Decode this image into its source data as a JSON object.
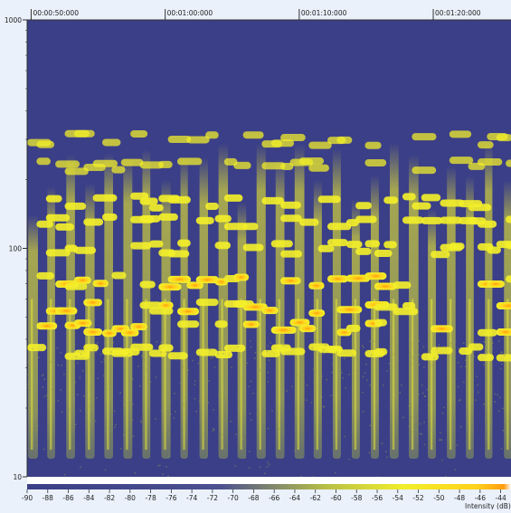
{
  "chart_data": {
    "type": "heatmap",
    "title": "",
    "xlabel": "",
    "ylabel": "",
    "x_axis": {
      "ticks": [
        "00:00:50:000",
        "00:01:00:000",
        "00:01:10:000",
        "00:01:20:000"
      ],
      "tick_seconds": [
        50,
        60,
        70,
        80
      ],
      "range_seconds": [
        49.7,
        85.8
      ]
    },
    "y_axis": {
      "scale": "log",
      "ticks": [
        "1000",
        "100",
        "10"
      ],
      "tick_values": [
        1000,
        100,
        10
      ],
      "range": [
        10,
        1000
      ]
    },
    "colorbar": {
      "label": "Intensity (dB)",
      "ticks": [
        "-90",
        "-88",
        "-86",
        "-84",
        "-82",
        "-80",
        "-78",
        "-76",
        "-74",
        "-72",
        "-70",
        "-68",
        "-66",
        "-64",
        "-62",
        "-60",
        "-58",
        "-56",
        "-54",
        "-52",
        "-50",
        "-48",
        "-46",
        "-44"
      ],
      "tick_values": [
        -90,
        -88,
        -86,
        -84,
        -82,
        -80,
        -78,
        -76,
        -74,
        -72,
        -70,
        -68,
        -66,
        -64,
        -62,
        -60,
        -58,
        -56,
        -54,
        -52,
        -50,
        -48,
        -46,
        -44
      ],
      "range": [
        -90,
        -43
      ],
      "colors": [
        "#3b3f87",
        "#4a4f8e",
        "#b9c045",
        "#f2ee2a",
        "#ffd11c",
        "#ff9c0e",
        "#ffffff"
      ]
    },
    "notes": {
      "harmonic_levels_hz": [
        35,
        45,
        55,
        72,
        100,
        130,
        160,
        230,
        300
      ]
    }
  },
  "colors": {
    "background": "#eaf1fb",
    "plot_background": "#3b3f87",
    "axis": "#333333"
  }
}
